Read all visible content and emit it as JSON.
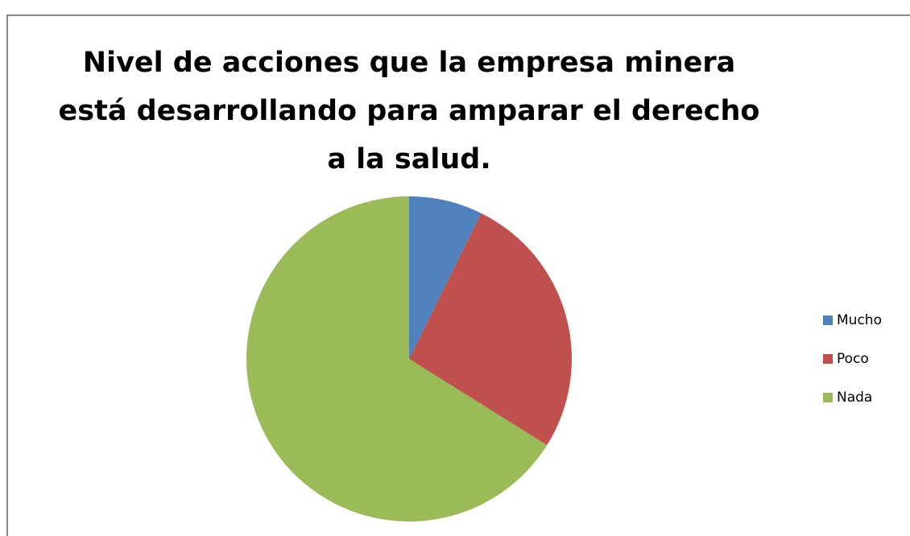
{
  "chart_data": {
    "type": "pie",
    "title": "Nivel de acciones que la empresa minera\nestá desarrollando para amparar el derecho\na la salud.",
    "categories": [
      "Mucho",
      "Poco",
      "Nada"
    ],
    "values": [
      7.3,
      26.6,
      66.1
    ],
    "colors": [
      "#4f81bd",
      "#c0504d",
      "#9bbb59"
    ],
    "legend": "right"
  }
}
